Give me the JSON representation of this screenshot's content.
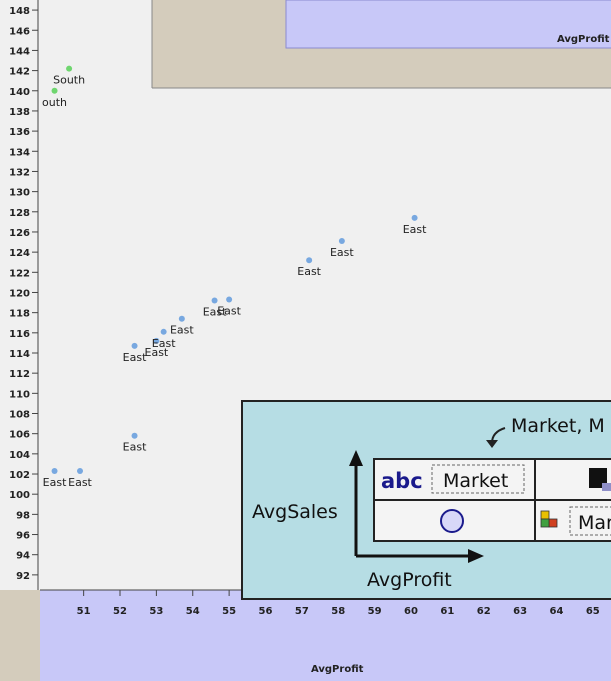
{
  "top_shelf": {
    "title": "AvgProfit"
  },
  "bottom_shelf": {
    "title": "AvgProfit"
  },
  "chart_data": {
    "type": "scatter",
    "xlabel": "AvgProfit",
    "ylabel": "",
    "x_ticks": [
      51,
      52,
      53,
      54,
      55,
      56,
      57,
      58,
      59,
      60,
      61,
      62,
      63,
      64,
      65
    ],
    "y_ticks": [
      92,
      94,
      96,
      98,
      100,
      102,
      104,
      106,
      108,
      110,
      112,
      114,
      116,
      118,
      120,
      122,
      124,
      126,
      128,
      130,
      132,
      134,
      136,
      138,
      140,
      142,
      144,
      146,
      148
    ],
    "xlim": [
      49.8,
      65.5
    ],
    "ylim": [
      90.5,
      149
    ],
    "series": [
      {
        "name": "South",
        "color": "#6fd66f",
        "points": [
          {
            "x": 50.6,
            "y": 142.2,
            "label": "South"
          },
          {
            "x": 50.2,
            "y": 140.0,
            "label": "outh"
          }
        ]
      },
      {
        "name": "East",
        "color": "#78a8e0",
        "points": [
          {
            "x": 50.2,
            "y": 102.3,
            "label": "East"
          },
          {
            "x": 50.9,
            "y": 102.3,
            "label": "East"
          },
          {
            "x": 52.4,
            "y": 105.8,
            "label": "East"
          },
          {
            "x": 52.4,
            "y": 114.7,
            "label": "East"
          },
          {
            "x": 53.0,
            "y": 115.2,
            "label": "East"
          },
          {
            "x": 53.2,
            "y": 116.1,
            "label": "East"
          },
          {
            "x": 53.7,
            "y": 117.4,
            "label": "East"
          },
          {
            "x": 54.6,
            "y": 119.2,
            "label": "East"
          },
          {
            "x": 55.0,
            "y": 119.3,
            "label": "East"
          },
          {
            "x": 57.2,
            "y": 123.2,
            "label": "East"
          },
          {
            "x": 58.1,
            "y": 125.1,
            "label": "East"
          },
          {
            "x": 60.1,
            "y": 127.4,
            "label": "East"
          }
        ]
      }
    ]
  },
  "legend": {
    "caption": "Market, M",
    "text_label": "abc",
    "text_field": "Market",
    "color_field": "Mar",
    "row_label": "AvgSales",
    "col_label": "AvgProfit"
  },
  "colors": {
    "plot_bg": "#f0f0f0",
    "shelf_bg": "#c8c8f8",
    "legend_bg": "#b6dde4"
  }
}
